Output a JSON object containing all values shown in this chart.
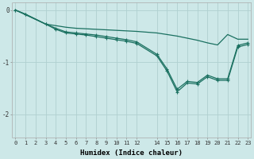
{
  "xlabel": "Humidex (Indice chaleur)",
  "bg_color": "#cde8e8",
  "line_color": "#1a7060",
  "grid_color": "#b0d0d0",
  "xlim": [
    -0.3,
    23.3
  ],
  "ylim": [
    -2.45,
    0.15
  ],
  "yticks": [
    0,
    -1,
    -2
  ],
  "x_ticks": [
    0,
    1,
    2,
    3,
    4,
    5,
    6,
    7,
    8,
    9,
    10,
    11,
    12,
    14,
    15,
    16,
    17,
    18,
    19,
    20,
    21,
    22,
    23
  ],
  "line_smooth_x": [
    0,
    3,
    4,
    5,
    6,
    7,
    8,
    9,
    10,
    11,
    12,
    14,
    15,
    16,
    17,
    18,
    19,
    20,
    21,
    22,
    23
  ],
  "line_smooth_y": [
    0.0,
    -0.27,
    -0.3,
    -0.33,
    -0.35,
    -0.36,
    -0.37,
    -0.38,
    -0.39,
    -0.4,
    -0.41,
    -0.44,
    -0.47,
    -0.5,
    -0.54,
    -0.58,
    -0.63,
    -0.67,
    -0.47,
    -0.56,
    -0.56
  ],
  "line_mid_x": [
    0,
    1,
    3,
    4,
    5,
    6,
    7,
    8,
    9,
    10,
    11,
    12,
    14,
    15,
    16,
    17,
    18,
    19,
    20,
    21,
    22,
    23
  ],
  "line_mid_y": [
    0.0,
    -0.08,
    -0.27,
    -0.35,
    -0.42,
    -0.44,
    -0.46,
    -0.48,
    -0.51,
    -0.54,
    -0.57,
    -0.61,
    -0.85,
    -1.13,
    -1.52,
    -1.37,
    -1.39,
    -1.25,
    -1.32,
    -1.32,
    -0.68,
    -0.63
  ],
  "line_deep_x": [
    0,
    1,
    3,
    4,
    5,
    6,
    7,
    8,
    9,
    10,
    11,
    12,
    14,
    15,
    16,
    17,
    18,
    19,
    20,
    21,
    22,
    23
  ],
  "line_deep_y": [
    0.0,
    -0.08,
    -0.27,
    -0.37,
    -0.44,
    -0.46,
    -0.48,
    -0.51,
    -0.54,
    -0.57,
    -0.6,
    -0.64,
    -0.88,
    -1.17,
    -1.57,
    -1.4,
    -1.42,
    -1.28,
    -1.35,
    -1.35,
    -0.71,
    -0.66
  ]
}
